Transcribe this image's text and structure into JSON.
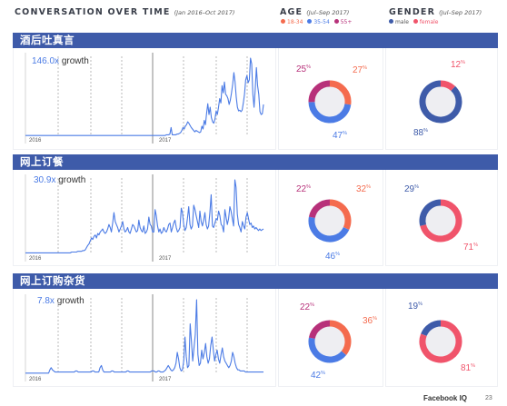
{
  "header": {
    "title": "CONVERSATION OVER TIME",
    "title_sub": "(Jan 2016–Oct 2017)",
    "age_title": "AGE",
    "age_sub": "(Jul–Sep 2017)",
    "gender_title": "GENDER",
    "gender_sub": "(Jul–Sep 2017)",
    "age_legend": [
      {
        "label": "18-34",
        "color": "#f46b4e"
      },
      {
        "label": "35-54",
        "color": "#4b7be5"
      },
      {
        "label": "55+",
        "color": "#b7317a"
      }
    ],
    "gender_legend": [
      {
        "label": "male",
        "color": "#3e5ba9"
      },
      {
        "label": "female",
        "color": "#f0546b"
      }
    ]
  },
  "colors": {
    "bar": "#3e5ba9",
    "line": "#4b7be5",
    "age_18_34": "#f46b4e",
    "age_35_54": "#4b7be5",
    "age_55_plus": "#b7317a",
    "male": "#3e5ba9",
    "female": "#f0546b"
  },
  "sections": [
    {
      "title": "酒后吐真言",
      "growth_value": "146.0x",
      "growth_label": "growth",
      "year_start": "2016",
      "year_mid": "2017"
    },
    {
      "title": "网上订餐",
      "growth_value": "30.9x",
      "growth_label": "growth",
      "year_start": "2016",
      "year_mid": "2017"
    },
    {
      "title": "网上订购杂货",
      "growth_value": "7.8x",
      "growth_label": "growth",
      "year_start": "2016",
      "year_mid": "2017"
    }
  ],
  "chart_data": [
    {
      "type": "line",
      "section": "酒后吐真言",
      "x_start": "2016",
      "x_mid": "2017",
      "annotation": "146.0x growth",
      "values": [
        1,
        1,
        1,
        1,
        1,
        1,
        1,
        1,
        1,
        1,
        1,
        1,
        1,
        1,
        1,
        1,
        1,
        1,
        1,
        1,
        1,
        1,
        1,
        1,
        1,
        1,
        1,
        1,
        1,
        1,
        1,
        1,
        1,
        1,
        1,
        1,
        1,
        1,
        1,
        1,
        1,
        1,
        1,
        1,
        1,
        1,
        1,
        1,
        1,
        1,
        1,
        1,
        1,
        1,
        1,
        1,
        1,
        1,
        1,
        1,
        1,
        1,
        1,
        1,
        1,
        1,
        1,
        1,
        1,
        1,
        1,
        1,
        1,
        1,
        1,
        1,
        1,
        1,
        1,
        1,
        1,
        1,
        1,
        1,
        1,
        1,
        1,
        1,
        1,
        1,
        1,
        1,
        1,
        1,
        1,
        1,
        1,
        1,
        1,
        1,
        1,
        1,
        1,
        1,
        1,
        1,
        1,
        1,
        1,
        1,
        1,
        1,
        1,
        1,
        1,
        1,
        1,
        1,
        1,
        2,
        2,
        2,
        3,
        12,
        2,
        2,
        2,
        2,
        3,
        3,
        4,
        5,
        8,
        12,
        10,
        14,
        16,
        20,
        18,
        15,
        12,
        10,
        8,
        6,
        8,
        7,
        6,
        5,
        6,
        14,
        10,
        22,
        16,
        32,
        45,
        30,
        40,
        26,
        20,
        18,
        24,
        35,
        30,
        40,
        52,
        46,
        70,
        60,
        75,
        58,
        56,
        52,
        44,
        50,
        60,
        72,
        88,
        75,
        54,
        40,
        35,
        36,
        34,
        36,
        46,
        58,
        78,
        84,
        74,
        78,
        108,
        100,
        58,
        40,
        65,
        95,
        70,
        58,
        34,
        30,
        31,
        44
      ]
    },
    {
      "type": "line",
      "section": "网上订餐",
      "x_start": "2016",
      "x_mid": "2017",
      "annotation": "30.9x growth",
      "values": [
        2,
        2,
        2,
        2,
        2,
        2,
        2,
        2,
        2,
        2,
        2,
        2,
        2,
        2,
        2,
        2,
        2,
        2,
        2,
        2,
        2,
        2,
        2,
        2,
        2,
        2,
        2,
        2,
        2,
        2,
        2,
        2,
        2,
        2,
        2,
        2,
        2,
        3,
        3,
        3,
        3,
        3,
        4,
        4,
        4,
        4,
        5,
        5,
        6,
        9,
        12,
        14,
        18,
        22,
        20,
        24,
        26,
        22,
        28,
        26,
        30,
        32,
        34,
        30,
        28,
        30,
        34,
        40,
        36,
        30,
        42,
        56,
        44,
        40,
        36,
        30,
        34,
        38,
        44,
        34,
        30,
        32,
        36,
        30,
        28,
        34,
        40,
        38,
        34,
        30,
        32,
        46,
        36,
        32,
        30,
        38,
        28,
        30,
        34,
        50,
        40,
        38,
        30,
        30,
        60,
        52,
        38,
        30,
        34,
        28,
        30,
        36,
        32,
        30,
        34,
        40,
        42,
        30,
        36,
        42,
        46,
        36,
        30,
        32,
        36,
        62,
        56,
        40,
        32,
        36,
        48,
        64,
        40,
        34,
        38,
        66,
        60,
        52,
        44,
        36,
        58,
        44,
        38,
        46,
        56,
        40,
        34,
        38,
        56,
        80,
        38,
        36,
        42,
        48,
        46,
        58,
        52,
        40,
        38,
        30,
        60,
        50,
        40,
        48,
        64,
        58,
        48,
        38,
        100,
        90,
        54,
        40,
        36,
        30,
        44,
        38,
        34,
        50,
        56,
        48,
        40,
        42,
        36,
        38,
        34,
        36,
        34,
        32,
        34,
        32,
        33,
        34
      ]
    },
    {
      "type": "line",
      "section": "网上订购杂货",
      "x_start": "2016",
      "x_mid": "2017",
      "annotation": "7.8x growth",
      "values": [
        1,
        1,
        1,
        1,
        1,
        1,
        1,
        1,
        1,
        1,
        1,
        1,
        1,
        1,
        1,
        1,
        1,
        1,
        1,
        4,
        6,
        4,
        3,
        2,
        2,
        2,
        2,
        2,
        2,
        2,
        2,
        2,
        2,
        2,
        2,
        2,
        2,
        2,
        2,
        3,
        3,
        2,
        2,
        2,
        2,
        2,
        2,
        2,
        2,
        2,
        2,
        2,
        3,
        3,
        2,
        2,
        2,
        2,
        6,
        8,
        4,
        2,
        2,
        2,
        2,
        2,
        2,
        3,
        3,
        2,
        2,
        2,
        2,
        2,
        2,
        2,
        2,
        2,
        2,
        3,
        3,
        2,
        2,
        2,
        2,
        2,
        2,
        2,
        2,
        2,
        2,
        2,
        2,
        2,
        2,
        2,
        2,
        2,
        3,
        3,
        3,
        2,
        2,
        3,
        3,
        2,
        2,
        2,
        3,
        4,
        6,
        8,
        6,
        4,
        3,
        4,
        6,
        10,
        20,
        14,
        6,
        3,
        4,
        12,
        34,
        16,
        6,
        8,
        46,
        30,
        12,
        24,
        36,
        68,
        18,
        8,
        10,
        22,
        14,
        20,
        28,
        16,
        10,
        14,
        26,
        34,
        22,
        12,
        18,
        22,
        14,
        10,
        18,
        24,
        16,
        12,
        10,
        8,
        6,
        8,
        12,
        20,
        16,
        10,
        6,
        4,
        4,
        3,
        3,
        3,
        3,
        2,
        2,
        2,
        2,
        2,
        2,
        2,
        2,
        2,
        2,
        2,
        2,
        2,
        2,
        2
      ]
    }
  ],
  "age_data": [
    {
      "section": "酒后吐真言",
      "18-34": 27,
      "35-54": 47,
      "55+": 25
    },
    {
      "section": "网上订餐",
      "18-34": 32,
      "35-54": 46,
      "55+": 22
    },
    {
      "section": "网上订购杂货",
      "18-34": 36,
      "35-54": 42,
      "55+": 22
    }
  ],
  "gender_data": [
    {
      "section": "酒后吐真言",
      "male": 88,
      "female": 12
    },
    {
      "section": "网上订餐",
      "male": 29,
      "female": 71
    },
    {
      "section": "网上订购杂货",
      "male": 19,
      "female": 81
    }
  ],
  "footer": {
    "brand": "Facebook IQ",
    "page": "23"
  }
}
